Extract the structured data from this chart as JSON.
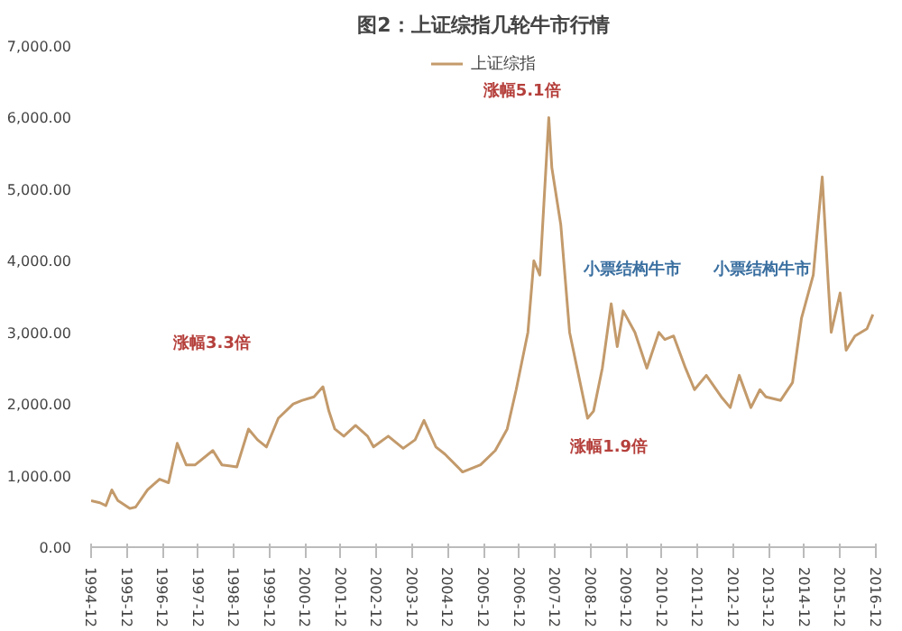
{
  "chart_data": {
    "type": "line",
    "title": "图2：上证综指几轮牛市行情",
    "legend": "top",
    "grid": false,
    "marker": "none",
    "line_style": "solid",
    "xlim": [
      "1994-12",
      "2016-12"
    ],
    "ylim": [
      0,
      7000
    ],
    "yticks": [
      {
        "value": 0,
        "label": "0.00"
      },
      {
        "value": 1000,
        "label": "1,000.00"
      },
      {
        "value": 2000,
        "label": "2,000.00"
      },
      {
        "value": 3000,
        "label": "3,000.00"
      },
      {
        "value": 4000,
        "label": "4,000.00"
      },
      {
        "value": 5000,
        "label": "5,000.00"
      },
      {
        "value": 6000,
        "label": "6,000.00"
      },
      {
        "value": 7000,
        "label": "7,000.00"
      }
    ],
    "xticks": [
      "1994-12",
      "1995-12",
      "1996-12",
      "1997-12",
      "1998-12",
      "1999-12",
      "2000-12",
      "2001-12",
      "2002-12",
      "2003-12",
      "2004-12",
      "2005-12",
      "2006-12",
      "2007-12",
      "2008-12",
      "2009-12",
      "2010-12",
      "2011-12",
      "2012-12",
      "2013-12",
      "2014-12",
      "2015-12",
      "2016-12"
    ],
    "annotations": [
      "涨幅3.3倍",
      "涨幅5.1倍",
      "涨幅1.9倍",
      "小票结构牛市",
      "小票结构牛市"
    ],
    "series": [
      {
        "name": "上证综指",
        "color": "#c39a6b",
        "x": [
          "1994-12",
          "1995-03",
          "1995-05",
          "1995-07",
          "1995-09",
          "1996-01",
          "1996-03",
          "1996-07",
          "1996-11",
          "1997-02",
          "1997-05",
          "1997-08",
          "1997-11",
          "1998-05",
          "1998-08",
          "1999-01",
          "1999-05",
          "1999-08",
          "1999-11",
          "2000-03",
          "2000-08",
          "2000-11",
          "2001-03",
          "2001-06",
          "2001-08",
          "2001-10",
          "2002-01",
          "2002-05",
          "2002-09",
          "2002-11",
          "2003-04",
          "2003-09",
          "2004-01",
          "2004-04",
          "2004-08",
          "2004-11",
          "2005-05",
          "2005-11",
          "2006-04",
          "2006-08",
          "2006-11",
          "2007-03",
          "2007-05",
          "2007-07",
          "2007-10",
          "2007-11",
          "2008-02",
          "2008-05",
          "2008-08",
          "2008-11",
          "2009-01",
          "2009-04",
          "2009-07",
          "2009-09",
          "2009-11",
          "2010-03",
          "2010-07",
          "2010-11",
          "2011-01",
          "2011-04",
          "2011-08",
          "2011-11",
          "2012-03",
          "2012-08",
          "2012-11",
          "2013-02",
          "2013-06",
          "2013-09",
          "2013-11",
          "2014-04",
          "2014-08",
          "2014-11",
          "2015-03",
          "2015-06",
          "2015-08",
          "2015-09",
          "2015-12",
          "2016-02",
          "2016-05",
          "2016-09",
          "2016-11"
        ],
        "values": [
          650,
          620,
          580,
          800,
          650,
          540,
          560,
          800,
          950,
          900,
          1450,
          1150,
          1150,
          1350,
          1150,
          1120,
          1650,
          1500,
          1400,
          1800,
          2000,
          2050,
          2100,
          2240,
          1900,
          1650,
          1550,
          1700,
          1550,
          1400,
          1550,
          1380,
          1500,
          1770,
          1400,
          1300,
          1050,
          1150,
          1350,
          1650,
          2200,
          3000,
          4000,
          3800,
          6000,
          5300,
          4500,
          3000,
          2400,
          1800,
          1900,
          2500,
          3400,
          2800,
          3300,
          3000,
          2500,
          3000,
          2900,
          2950,
          2500,
          2200,
          2400,
          2100,
          1950,
          2400,
          1950,
          2200,
          2100,
          2050,
          2300,
          3200,
          3800,
          5170,
          3700,
          3000,
          3550,
          2750,
          2950,
          3050,
          3250
        ]
      }
    ]
  }
}
